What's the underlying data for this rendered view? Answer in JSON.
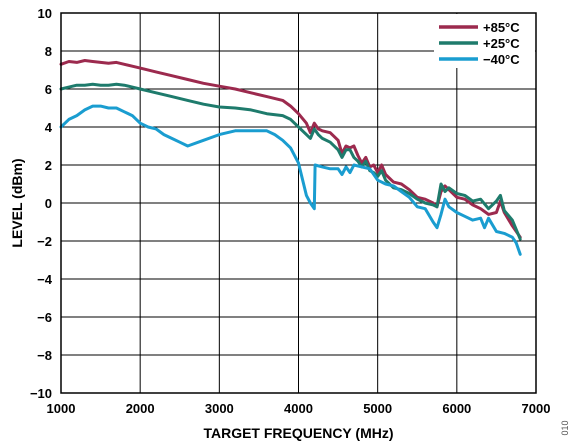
{
  "figure_id": "010",
  "chart_data": {
    "type": "line",
    "title": "",
    "xlabel": "TARGET FREQUENCY (MHz)",
    "ylabel": "LEVEL (dBm)",
    "xlim": [
      1000,
      7000
    ],
    "ylim": [
      -10,
      10
    ],
    "x_ticks": [
      1000,
      2000,
      3000,
      4000,
      5000,
      6000,
      7000
    ],
    "y_ticks": [
      10,
      8,
      6,
      4,
      2,
      0,
      -2,
      -4,
      -6,
      -8,
      -10
    ],
    "y_tick_labels": [
      "10",
      "8",
      "6",
      "4",
      "2",
      "0",
      "−2",
      "−4",
      "−6",
      "−8",
      "−10"
    ],
    "grid": true,
    "legend_position": "top-right",
    "series": [
      {
        "name": "+85°C",
        "color": "#9c2a4e",
        "x": [
          1000,
          1100,
          1200,
          1300,
          1400,
          1500,
          1600,
          1700,
          1800,
          1900,
          2000,
          2200,
          2400,
          2600,
          2800,
          3000,
          3200,
          3400,
          3600,
          3800,
          3900,
          4000,
          4100,
          4150,
          4200,
          4250,
          4300,
          4400,
          4500,
          4550,
          4600,
          4650,
          4700,
          4750,
          4800,
          4850,
          4900,
          4950,
          5000,
          5050,
          5100,
          5200,
          5300,
          5400,
          5500,
          5600,
          5700,
          5750,
          5800,
          5850,
          5900,
          6000,
          6100,
          6200,
          6300,
          6400,
          6500,
          6550,
          6600,
          6700,
          6800
        ],
        "y": [
          7.3,
          7.45,
          7.4,
          7.5,
          7.45,
          7.4,
          7.35,
          7.4,
          7.3,
          7.2,
          7.1,
          6.9,
          6.7,
          6.5,
          6.3,
          6.15,
          6.0,
          5.8,
          5.6,
          5.4,
          5.1,
          4.7,
          4.2,
          3.7,
          4.2,
          3.9,
          3.8,
          3.7,
          3.3,
          2.6,
          3.0,
          2.9,
          3.0,
          2.5,
          2.1,
          2.4,
          1.9,
          2.0,
          1.6,
          2.0,
          1.5,
          1.1,
          1.0,
          0.7,
          0.3,
          0.2,
          0.0,
          -0.2,
          0.6,
          0.9,
          0.7,
          0.3,
          0.2,
          -0.1,
          -0.3,
          -0.6,
          -0.5,
          0.1,
          -0.5,
          -1.2,
          -1.8
        ]
      },
      {
        "name": "+25°C",
        "color": "#1e7b6c",
        "x": [
          1000,
          1100,
          1200,
          1300,
          1400,
          1500,
          1600,
          1700,
          1800,
          1900,
          2000,
          2200,
          2400,
          2600,
          2800,
          3000,
          3200,
          3400,
          3600,
          3800,
          3900,
          4000,
          4100,
          4150,
          4200,
          4250,
          4300,
          4400,
          4500,
          4550,
          4600,
          4650,
          4700,
          4750,
          4800,
          4850,
          4900,
          4950,
          5000,
          5050,
          5100,
          5200,
          5300,
          5400,
          5500,
          5600,
          5700,
          5750,
          5800,
          5850,
          5900,
          6000,
          6100,
          6200,
          6300,
          6400,
          6500,
          6550,
          6600,
          6700,
          6800
        ],
        "y": [
          6.0,
          6.1,
          6.2,
          6.2,
          6.25,
          6.2,
          6.2,
          6.25,
          6.2,
          6.1,
          6.0,
          5.8,
          5.6,
          5.4,
          5.2,
          5.05,
          5.0,
          4.9,
          4.7,
          4.6,
          4.4,
          4.0,
          3.6,
          3.4,
          3.9,
          3.6,
          3.4,
          3.2,
          2.8,
          2.4,
          2.8,
          2.8,
          2.4,
          2.2,
          1.9,
          2.2,
          1.7,
          1.6,
          1.4,
          1.7,
          1.2,
          0.8,
          0.7,
          0.5,
          0.2,
          0.0,
          -0.1,
          -0.2,
          1.0,
          0.6,
          0.8,
          0.5,
          0.4,
          0.1,
          0.2,
          -0.3,
          0.1,
          0.4,
          -0.4,
          -0.9,
          -1.9
        ]
      },
      {
        "name": "−40°C",
        "color": "#1a9dd0",
        "x": [
          1000,
          1100,
          1200,
          1300,
          1400,
          1500,
          1600,
          1700,
          1800,
          1900,
          2000,
          2100,
          2200,
          2300,
          2400,
          2500,
          2600,
          2800,
          3000,
          3200,
          3400,
          3600,
          3700,
          3800,
          3900,
          4000,
          4100,
          4150,
          4200,
          4210,
          4300,
          4400,
          4500,
          4550,
          4600,
          4650,
          4700,
          4800,
          4900,
          5000,
          5100,
          5200,
          5300,
          5400,
          5500,
          5600,
          5700,
          5750,
          5800,
          5850,
          5900,
          6000,
          6100,
          6200,
          6300,
          6350,
          6400,
          6500,
          6600,
          6700,
          6750,
          6800
        ],
        "y": [
          4.0,
          4.4,
          4.6,
          4.9,
          5.1,
          5.1,
          5.0,
          5.0,
          4.8,
          4.6,
          4.2,
          4.0,
          3.9,
          3.6,
          3.4,
          3.2,
          3.0,
          3.3,
          3.6,
          3.8,
          3.8,
          3.8,
          3.6,
          3.3,
          2.9,
          2.1,
          0.4,
          0.0,
          -0.3,
          2.0,
          1.9,
          1.8,
          1.8,
          1.5,
          1.9,
          1.6,
          2.0,
          1.9,
          1.8,
          1.2,
          1.0,
          0.9,
          0.6,
          0.3,
          -0.2,
          -0.3,
          -1.0,
          -1.3,
          -0.6,
          0.2,
          -0.2,
          -0.5,
          -0.7,
          -0.9,
          -0.8,
          -1.3,
          -0.8,
          -1.5,
          -1.6,
          -1.8,
          -2.1,
          -2.7
        ]
      }
    ]
  }
}
